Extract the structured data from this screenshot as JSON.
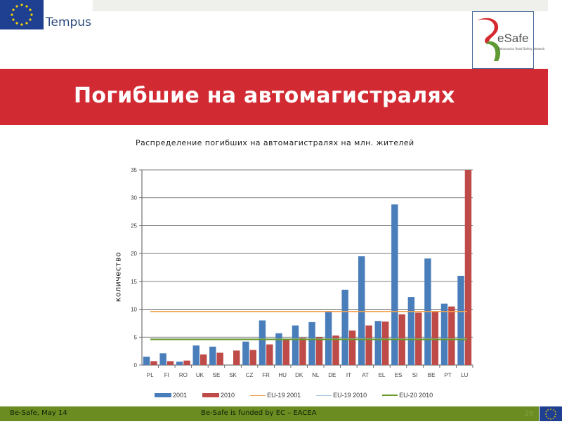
{
  "header": {
    "tempus_label": "Tempus",
    "besafe_logo_text": "eSafe",
    "besafe_logo_subtitle": "Belarussian Road Safety Network"
  },
  "slide": {
    "title": "Погибшие на автомагистралях"
  },
  "footer": {
    "left": "Be-Safe, May 14",
    "center": "Be-Safe is funded by EC – EACEA",
    "page_number": "26"
  },
  "colors": {
    "title_band": "#d22a33",
    "footer_band": "#6b8c21",
    "series_2001": "#4a7ebb",
    "series_2010": "#be4b48",
    "eu19_2001": "#f0a050",
    "eu19_2010": "#a8c4e0",
    "eu20_2010": "#6b9a2a"
  },
  "chart_data": {
    "type": "bar",
    "title": "Распределение погибших на автомагистралях на млн. жителей",
    "xlabel": "",
    "ylabel": "количество",
    "ylim": [
      0,
      35
    ],
    "yticks": [
      0,
      5,
      10,
      15,
      20,
      25,
      30,
      35
    ],
    "grid": true,
    "legend_position": "bottom",
    "categories": [
      "PL",
      "FI",
      "RO",
      "UK",
      "SE",
      "SK",
      "CZ",
      "FR",
      "HU",
      "DK",
      "NL",
      "DE",
      "IT",
      "AT",
      "EL",
      "ES",
      "SI",
      "BE",
      "PT",
      "LU"
    ],
    "series": [
      {
        "name": "2001",
        "type": "bar",
        "values": [
          1.5,
          2.1,
          0.6,
          3.5,
          3.3,
          0,
          4.2,
          8.0,
          5.7,
          7.1,
          7.7,
          9.5,
          13.5,
          19.5,
          7.9,
          28.8,
          12.2,
          19.1,
          11.0,
          16.0
        ]
      },
      {
        "name": "2010",
        "type": "bar",
        "values": [
          0.7,
          0.7,
          0.8,
          1.9,
          2.2,
          2.6,
          2.7,
          3.7,
          4.5,
          4.9,
          5.0,
          5.3,
          6.2,
          7.1,
          7.8,
          9.1,
          9.4,
          9.7,
          10.5,
          35.0
        ]
      },
      {
        "name": "EU-19 2001",
        "type": "line",
        "value": 9.6
      },
      {
        "name": "EU-19 2010",
        "type": "line",
        "value": 4.7
      },
      {
        "name": "EU-20 2010",
        "type": "line",
        "value": 4.6
      }
    ]
  }
}
